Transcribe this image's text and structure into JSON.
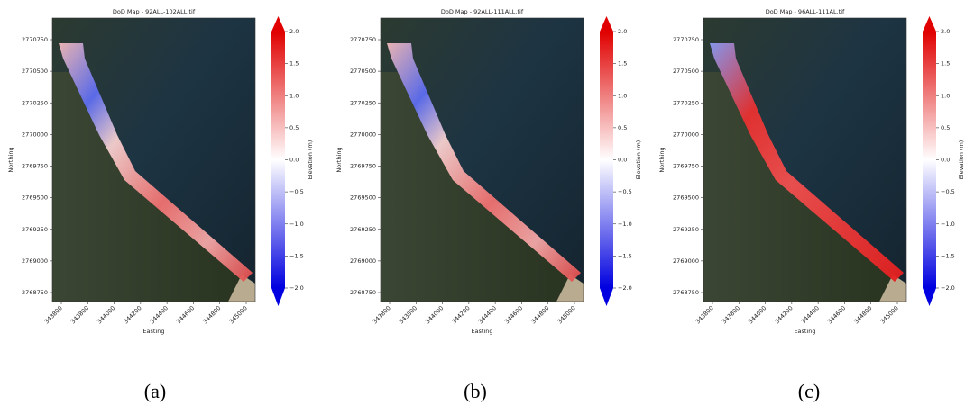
{
  "panels": [
    {
      "title": "DoD Map - 92ALL-102ALL.tif",
      "xlabel": "Easting",
      "ylabel": "Northing",
      "colorbar_label": "Elevation (m)",
      "xticks": [
        "343800",
        "343800",
        "344000",
        "344200",
        "344400",
        "344600",
        "344800",
        "345000"
      ],
      "yticks": [
        "2770750",
        "2770500",
        "2770250",
        "2770000",
        "2769750",
        "2769500",
        "2769250",
        "2769000",
        "2768750"
      ],
      "colorbar_ticks": [
        "2.0",
        "1.5",
        "1.0",
        "0.5",
        "0.0",
        "−0.5",
        "−1.0",
        "−1.5",
        "−2.0"
      ],
      "caption": "(a)"
    },
    {
      "title": "DoD Map - 92ALL-111ALL.tif",
      "xlabel": "Easting",
      "ylabel": "Northing",
      "colorbar_label": "Elevation (m)",
      "xticks": [
        "343800",
        "343800",
        "344000",
        "344200",
        "344400",
        "344600",
        "344800",
        "345000"
      ],
      "yticks": [
        "2770750",
        "2770500",
        "2770250",
        "2770000",
        "2769750",
        "2769500",
        "2769250",
        "2769000",
        "2768750"
      ],
      "colorbar_ticks": [
        "2.0",
        "1.5",
        "1.0",
        "0.5",
        "0.0",
        "−0.5",
        "−1.0",
        "−1.5",
        "−2.0"
      ],
      "caption": "(b)"
    },
    {
      "title": "DoD Map - 96ALL-111AL.tif",
      "xlabel": "Easting",
      "ylabel": "Northing",
      "colorbar_label": "Elevation (m)",
      "xticks": [
        "343800",
        "343800",
        "344000",
        "344200",
        "344400",
        "344600",
        "344800",
        "345000"
      ],
      "yticks": [
        "2770750",
        "2770500",
        "2770250",
        "2770000",
        "2769750",
        "2769500",
        "2769250",
        "2769000",
        "2768750"
      ],
      "colorbar_ticks": [
        "2.0",
        "1.5",
        "1.0",
        "0.5",
        "0.0",
        "−0.5",
        "−1.0",
        "−1.5",
        "−2.0"
      ],
      "caption": "(c)"
    }
  ]
}
